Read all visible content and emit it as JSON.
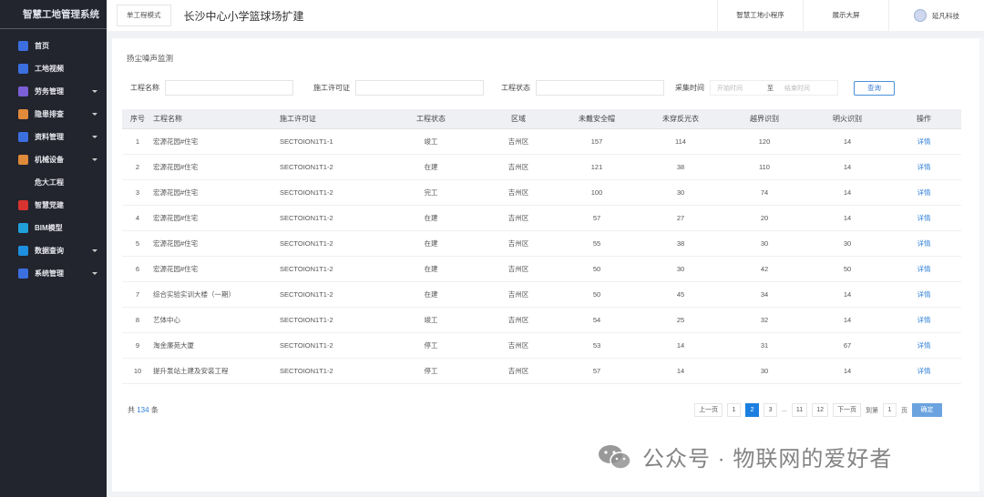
{
  "app": {
    "title": "智慧工地管理系统"
  },
  "sidebar": {
    "items": [
      {
        "label": "首页",
        "icon": "home-icon",
        "color": "#3b6fe0",
        "arrow": false
      },
      {
        "label": "工地视频",
        "icon": "video-icon",
        "color": "#3b6fe0",
        "arrow": false
      },
      {
        "label": "劳务管理",
        "icon": "workers-icon",
        "color": "#7b5fd6",
        "arrow": true
      },
      {
        "label": "隐患排查",
        "icon": "hazard-icon",
        "color": "#e08a3b",
        "arrow": true
      },
      {
        "label": "资料管理",
        "icon": "document-icon",
        "color": "#3b6fe0",
        "arrow": true
      },
      {
        "label": "机械设备",
        "icon": "machine-icon",
        "color": "#e08a3b",
        "arrow": true
      },
      {
        "label": "危大工程",
        "icon": "",
        "color": "",
        "arrow": false,
        "sub": true
      },
      {
        "label": "智慧党建",
        "icon": "party-icon",
        "color": "#d8332f",
        "arrow": false
      },
      {
        "label": "BIM模型",
        "icon": "bim-icon",
        "color": "#1fa0d8",
        "arrow": false
      },
      {
        "label": "数据查询",
        "icon": "data-icon",
        "color": "#1f8fe0",
        "arrow": true
      },
      {
        "label": "系统管理",
        "icon": "gear-icon",
        "color": "#3b6fe0",
        "arrow": true
      }
    ]
  },
  "header": {
    "mode_button": "单工程模式",
    "project_title": "长沙中心小学篮球场扩建",
    "links": [
      "智慧工地小程序",
      "展示大屏"
    ],
    "user": "延凡科技"
  },
  "main": {
    "title": "扬尘噪声监测",
    "filters": {
      "name_label": "工程名称",
      "permit_label": "施工许可证",
      "status_label": "工程状态",
      "time_label": "采集时间",
      "start_placeholder": "开始时间",
      "to": "至",
      "end_placeholder": "结束时间",
      "query": "查询"
    },
    "table": {
      "columns": [
        "序号",
        "工程名称",
        "施工许可证",
        "工程状态",
        "区域",
        "未戴安全帽",
        "未穿反光衣",
        "越界识别",
        "明火识别",
        "操作"
      ],
      "rows": [
        [
          "1",
          "宏源花园#住宅",
          "SECTOION1T1-1",
          "竣工",
          "吉州区",
          "157",
          "114",
          "120",
          "14",
          "详情"
        ],
        [
          "2",
          "宏源花园#住宅",
          "SECTOION1T1-2",
          "在建",
          "吉州区",
          "121",
          "38",
          "110",
          "14",
          "详情"
        ],
        [
          "3",
          "宏源花园#住宅",
          "SECTOION1T1-2",
          "完工",
          "吉州区",
          "100",
          "30",
          "74",
          "14",
          "详情"
        ],
        [
          "4",
          "宏源花园#住宅",
          "SECTOION1T1-2",
          "在建",
          "吉州区",
          "57",
          "27",
          "20",
          "14",
          "详情"
        ],
        [
          "5",
          "宏源花园#住宅",
          "SECTOION1T1-2",
          "在建",
          "吉州区",
          "55",
          "38",
          "30",
          "30",
          "详情"
        ],
        [
          "6",
          "宏源花园#住宅",
          "SECTOION1T1-2",
          "在建",
          "吉州区",
          "50",
          "30",
          "42",
          "50",
          "详情"
        ],
        [
          "7",
          "综合实验实训大楼（一期）",
          "SECTOION1T1-2",
          "在建",
          "吉州区",
          "50",
          "45",
          "34",
          "14",
          "详情"
        ],
        [
          "8",
          "艺体中心",
          "SECTOION1T1-2",
          "竣工",
          "吉州区",
          "54",
          "25",
          "32",
          "14",
          "详情"
        ],
        [
          "9",
          "淘金廉苑大厦",
          "SECTOION1T1-2",
          "停工",
          "吉州区",
          "53",
          "14",
          "31",
          "67",
          "详情"
        ],
        [
          "10",
          "提升泵站土建及安装工程",
          "SECTOION1T1-2",
          "停工",
          "吉州区",
          "57",
          "14",
          "30",
          "14",
          "详情"
        ]
      ]
    },
    "total": {
      "prefix": "共",
      "count": "134",
      "suffix": "条"
    },
    "pagination": {
      "prev": "上一页",
      "pages": [
        "1",
        "2",
        "3",
        "...",
        "11",
        "12"
      ],
      "current": "2",
      "next": "下一页",
      "goto_label": "到第",
      "goto_value": "1",
      "page_unit": "页",
      "confirm": "确定"
    }
  },
  "watermark": {
    "text": "公众号 · 物联网的爱好者"
  }
}
